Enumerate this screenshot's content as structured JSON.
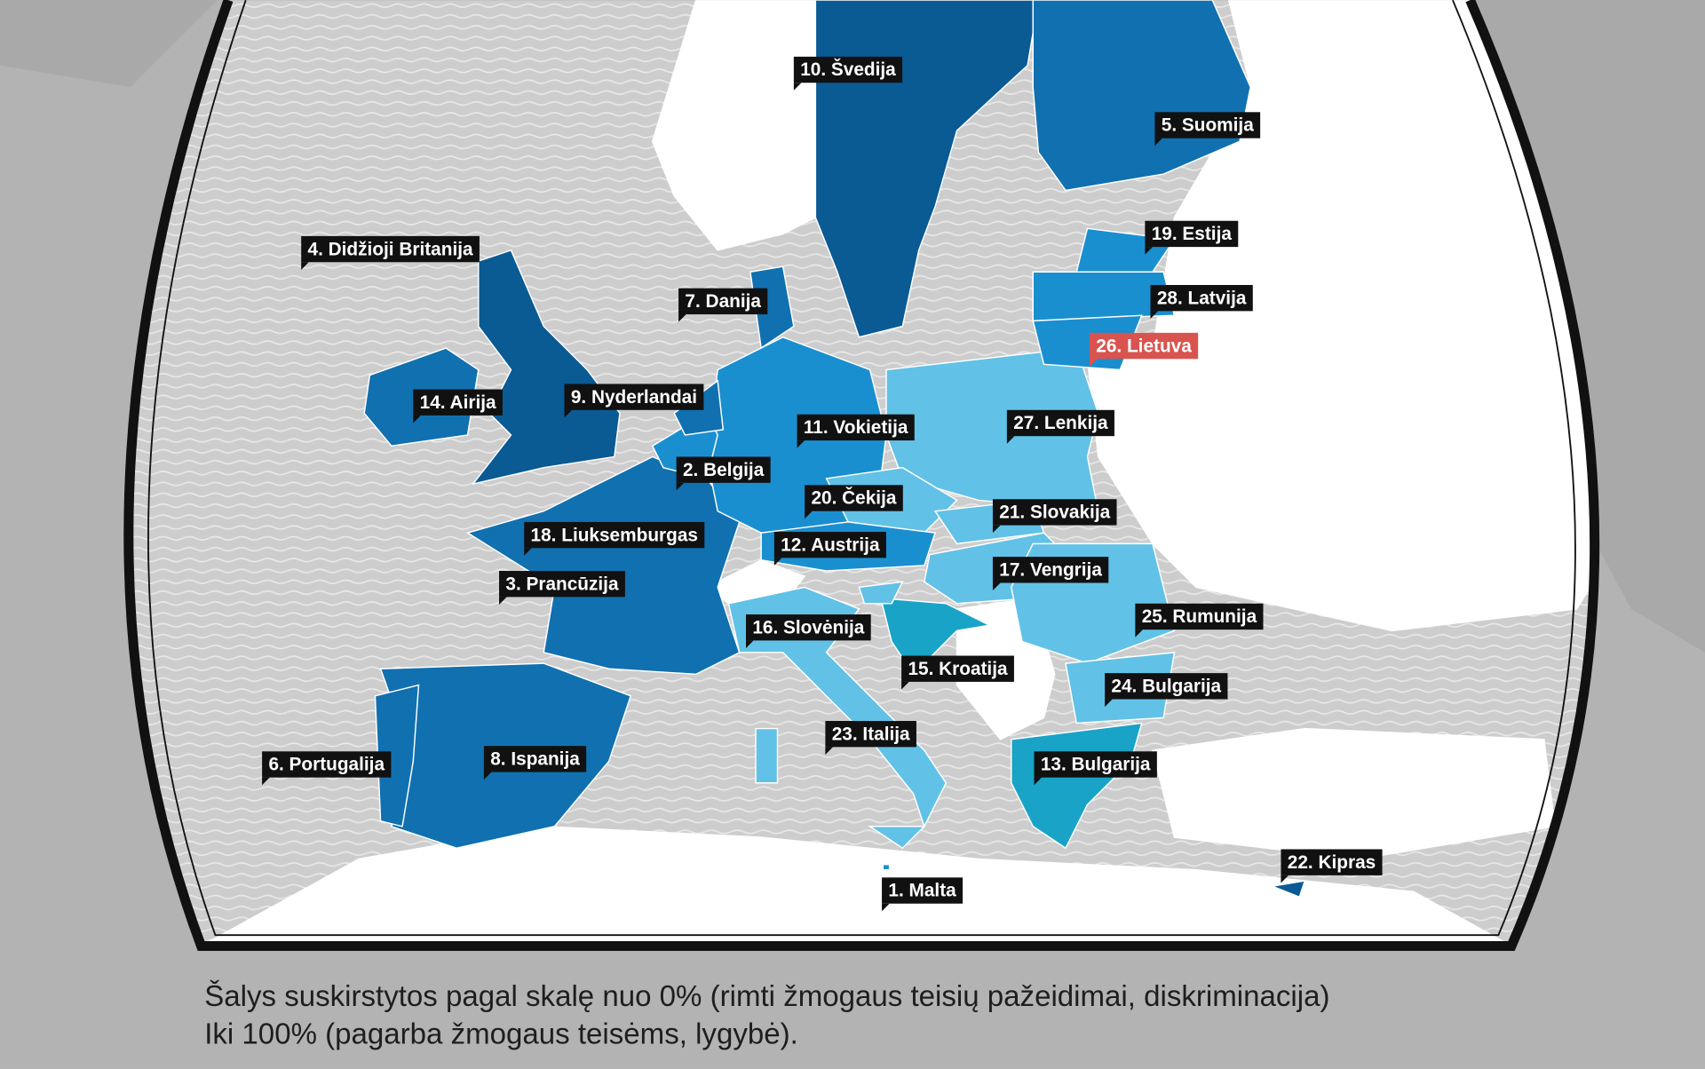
{
  "labels": [
    "10. Švedija",
    "5. Suomija",
    "4. Didžioji Britanija",
    "19. Estija",
    "7. Danija",
    "28. Latvija",
    "26. Lietuva",
    "14. Airija",
    "9. Nyderlandai",
    "11. Vokietija",
    "27. Lenkija",
    "2. Belgija",
    "20. Čekija",
    "21. Slovakija",
    "18. Liuksemburgas",
    "12. Austrija",
    "3. Prancūzija",
    "17. Vengrija",
    "16. Slovėnija",
    "25. Rumunija",
    "15. Kroatija",
    "24. Bulgarija",
    "23. Italija",
    "6. Portugalija",
    "8. Ispanija",
    "13. Bulgarija",
    "22. Kipras",
    "1. Malta"
  ],
  "caption": [
    "Šalys suskirstytos pagal skalę nuo 0% (rimti žmogaus teisių pažeidimai, diskriminacija)",
    "Iki 100% (pagarba žmogaus teisėms, lygybė)."
  ]
}
